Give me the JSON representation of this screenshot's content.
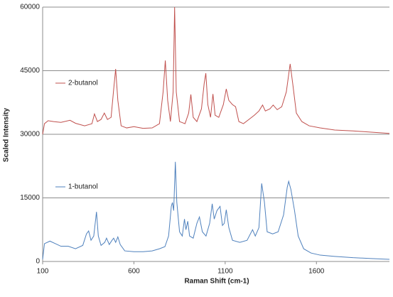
{
  "chart_data": {
    "type": "line",
    "xlabel": "Raman Shift (cm-1)",
    "ylabel": "Scaled Intensity",
    "xlim": [
      100,
      2000
    ],
    "ylim": [
      0,
      60000
    ],
    "xticks": [
      100,
      600,
      1100,
      1600
    ],
    "yticks": [
      0,
      15000,
      30000,
      45000,
      60000
    ],
    "grid": true,
    "series": [
      {
        "name": "2-butanol",
        "color": "#c0504d",
        "x": [
          100,
          110,
          130,
          160,
          200,
          250,
          280,
          330,
          370,
          384,
          400,
          420,
          438,
          455,
          475,
          490,
          500,
          512,
          530,
          560,
          600,
          650,
          700,
          740,
          760,
          772,
          785,
          800,
          815,
          823,
          832,
          850,
          880,
          900,
          912,
          925,
          945,
          970,
          985,
          994,
          1005,
          1020,
          1033,
          1045,
          1065,
          1090,
          1106,
          1120,
          1140,
          1157,
          1175,
          1200,
          1230,
          1260,
          1285,
          1305,
          1320,
          1345,
          1363,
          1385,
          1410,
          1435,
          1456,
          1470,
          1490,
          1520,
          1560,
          1620,
          1700,
          1800,
          1900,
          2000
        ],
        "values": [
          30000,
          32500,
          33200,
          33000,
          32800,
          33300,
          32600,
          32000,
          32500,
          34800,
          33000,
          33500,
          35000,
          33500,
          34000,
          41000,
          45400,
          38000,
          32000,
          31500,
          31800,
          31400,
          31500,
          32500,
          40000,
          47400,
          38000,
          33000,
          40000,
          60000,
          40000,
          33000,
          32500,
          35000,
          39400,
          34000,
          33000,
          36000,
          42000,
          44400,
          37000,
          34000,
          39500,
          34500,
          34000,
          37000,
          40700,
          38000,
          37000,
          36500,
          33000,
          32500,
          33500,
          34500,
          35500,
          36900,
          35500,
          36000,
          36900,
          35800,
          36500,
          40000,
          46600,
          42000,
          35000,
          33000,
          32000,
          31500,
          31000,
          30800,
          30500,
          30200
        ]
      },
      {
        "name": "1-butanol",
        "color": "#4f81bd",
        "x": [
          100,
          110,
          140,
          170,
          200,
          240,
          280,
          320,
          340,
          352,
          365,
          380,
          395,
          405,
          420,
          440,
          450,
          465,
          480,
          489,
          500,
          512,
          525,
          550,
          600,
          650,
          700,
          740,
          770,
          790,
          805,
          811,
          818,
          827,
          835,
          850,
          865,
          877,
          885,
          895,
          905,
          925,
          945,
          959,
          975,
          995,
          1015,
          1029,
          1040,
          1055,
          1072,
          1085,
          1095,
          1106,
          1120,
          1140,
          1180,
          1220,
          1250,
          1265,
          1285,
          1300,
          1315,
          1330,
          1360,
          1390,
          1420,
          1440,
          1448,
          1460,
          1480,
          1500,
          1530,
          1570,
          1620,
          1700,
          1800,
          1900,
          2000
        ],
        "values": [
          500,
          4200,
          4800,
          4200,
          3600,
          3600,
          3000,
          3800,
          6500,
          7200,
          5000,
          6000,
          11700,
          6000,
          3800,
          4500,
          5500,
          4000,
          5000,
          5500,
          4500,
          5800,
          4000,
          2500,
          2300,
          2300,
          2500,
          3000,
          3500,
          6000,
          13000,
          13900,
          12000,
          23500,
          14000,
          7000,
          6000,
          10000,
          7500,
          9500,
          6000,
          5500,
          9000,
          10500,
          7000,
          6000,
          9000,
          13600,
          10000,
          12000,
          13000,
          8500,
          9000,
          12200,
          8000,
          5000,
          4500,
          5000,
          7500,
          6000,
          8000,
          18400,
          14000,
          7000,
          6500,
          7000,
          11000,
          17500,
          18900,
          17000,
          12000,
          6000,
          3000,
          2000,
          1500,
          1200,
          900,
          700,
          500
        ]
      }
    ]
  }
}
